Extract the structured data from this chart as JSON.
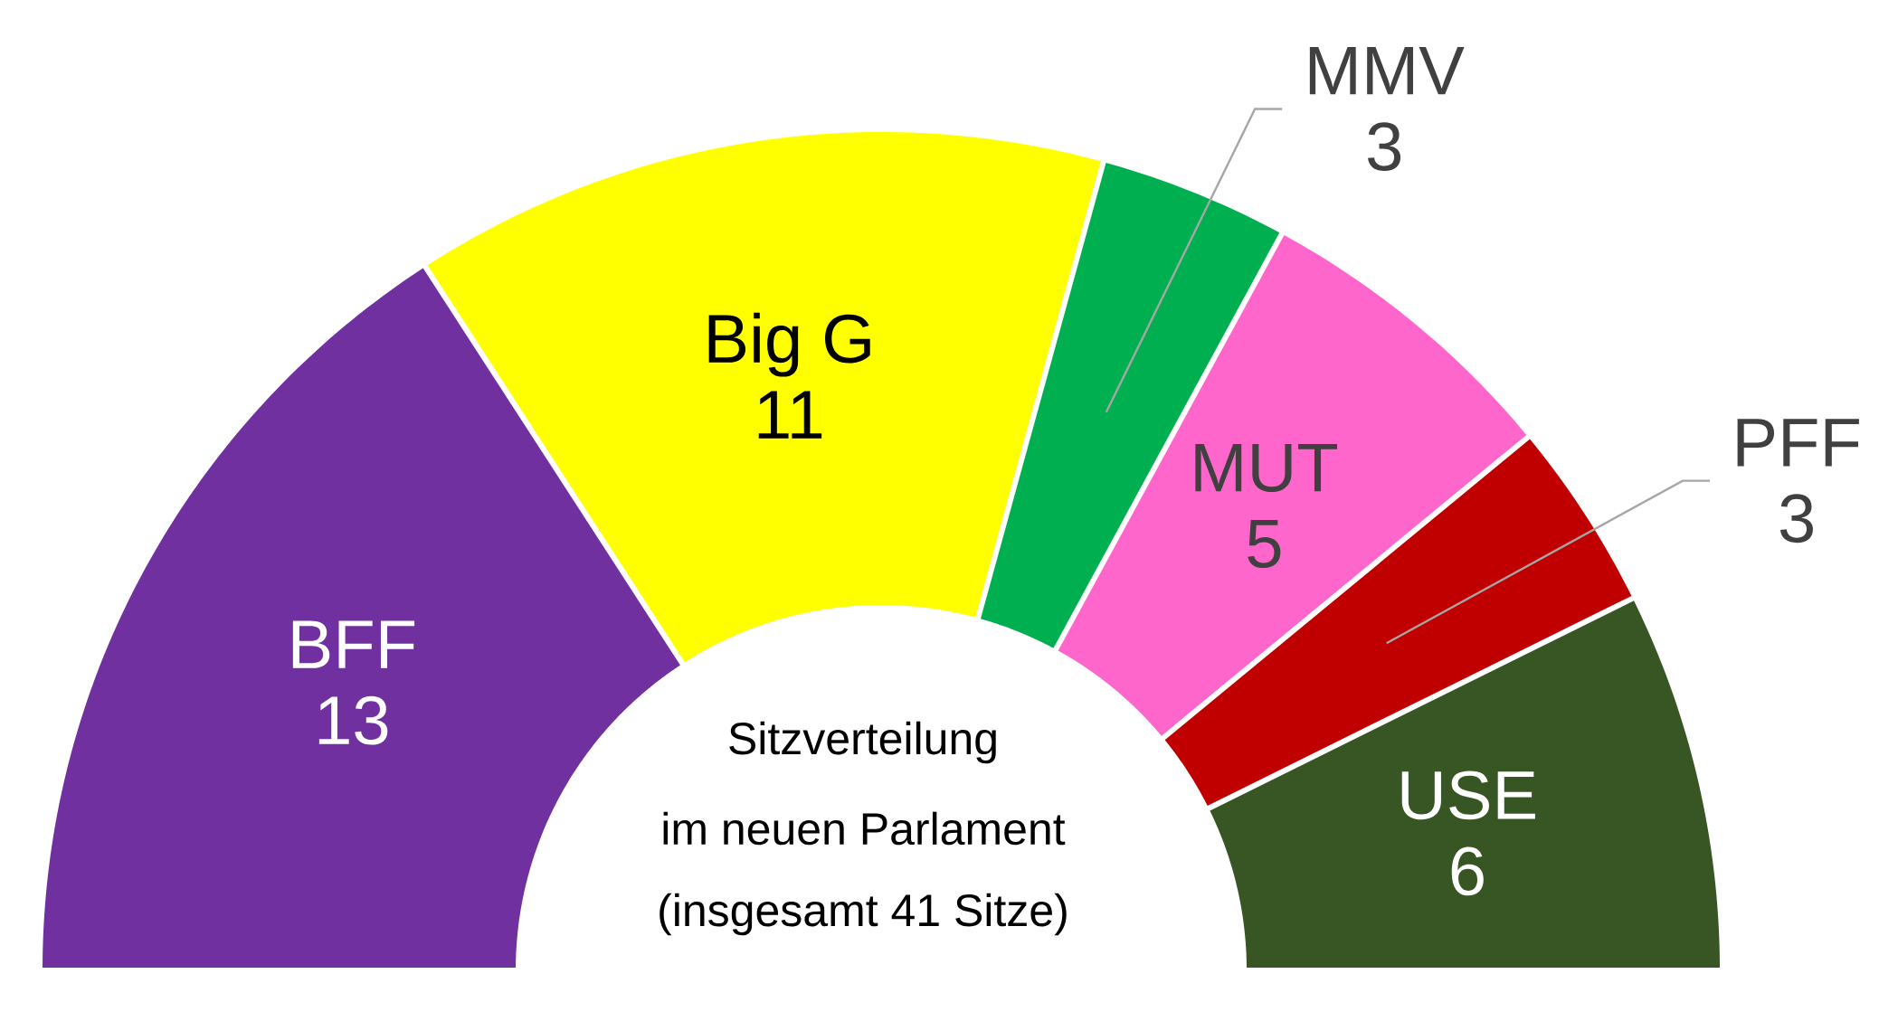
{
  "chart_data": {
    "type": "donut",
    "categories": [
      "BFF",
      "Big G",
      "MMV",
      "MUT",
      "PFF",
      "USE"
    ],
    "values": [
      13,
      11,
      3,
      5,
      3,
      6
    ],
    "colors": [
      "#7030a0",
      "#ffff00",
      "#00b050",
      "#ff66cc",
      "#c00000",
      "#375623"
    ],
    "data_labels": true,
    "annotations": [
      "Sitzverteilung",
      "im neuen Parlament",
      "(insgesamt 41 Sitze)"
    ]
  }
}
